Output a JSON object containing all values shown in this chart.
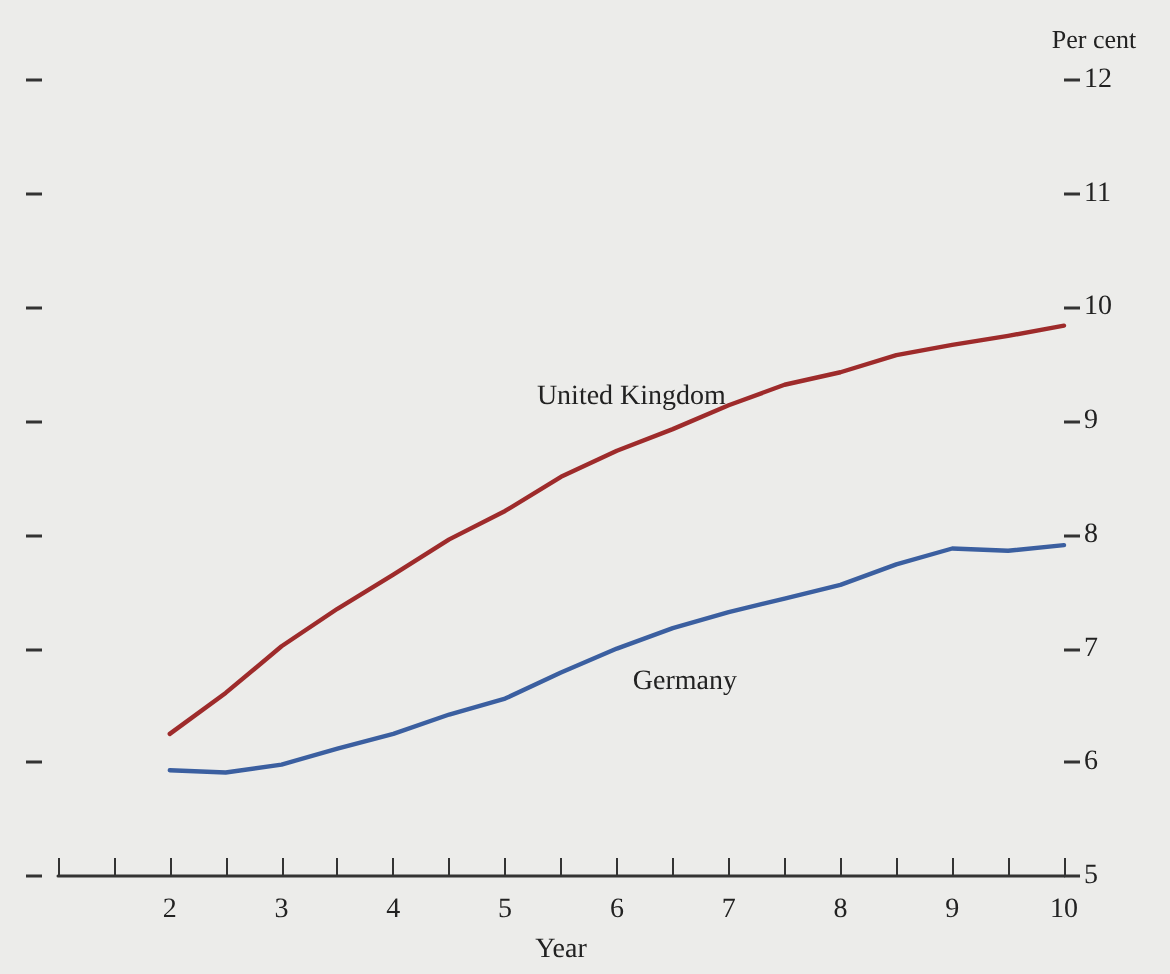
{
  "chart_data": {
    "type": "line",
    "xlabel": "Year",
    "ylabel": "Per cent",
    "xlim": [
      1,
      10
    ],
    "xticks": [
      {
        "value": 1,
        "label": null
      },
      {
        "value": 1.5,
        "label": null
      },
      2,
      {
        "value": 2.5,
        "label": null
      },
      3,
      {
        "value": 3.5,
        "label": null
      },
      4,
      {
        "value": 4.5,
        "label": null
      },
      5,
      {
        "value": 5.5,
        "label": null
      },
      6,
      {
        "value": 6.5,
        "label": null
      },
      7,
      {
        "value": 7.5,
        "label": null
      },
      8,
      {
        "value": 8.5,
        "label": null
      },
      9,
      {
        "value": 9.5,
        "label": null
      },
      10
    ],
    "ylim": [
      5,
      12
    ],
    "yticks": [
      5,
      6,
      7,
      8,
      9,
      10,
      11,
      12
    ],
    "x": [
      2,
      2.5,
      3,
      3.5,
      4,
      4.5,
      5,
      5.5,
      6,
      6.5,
      7,
      7.5,
      8,
      8.5,
      9,
      9.5,
      10
    ],
    "series": [
      {
        "name": "United Kingdom",
        "color": "#9e2b2b",
        "values": [
          6.25,
          6.61,
          7.02,
          7.35,
          7.65,
          7.96,
          8.21,
          8.51,
          8.74,
          8.93,
          9.14,
          9.32,
          9.43,
          9.58,
          9.67,
          9.75,
          9.84
        ]
      },
      {
        "name": "Germany",
        "color": "#3b5fa0",
        "values": [
          5.93,
          5.91,
          5.98,
          6.12,
          6.25,
          6.42,
          6.56,
          6.79,
          7.0,
          7.18,
          7.32,
          7.44,
          7.56,
          7.74,
          7.88,
          7.86,
          7.91
        ]
      }
    ],
    "grid": false,
    "legend": false,
    "marker": "none",
    "line_style": "solid"
  }
}
